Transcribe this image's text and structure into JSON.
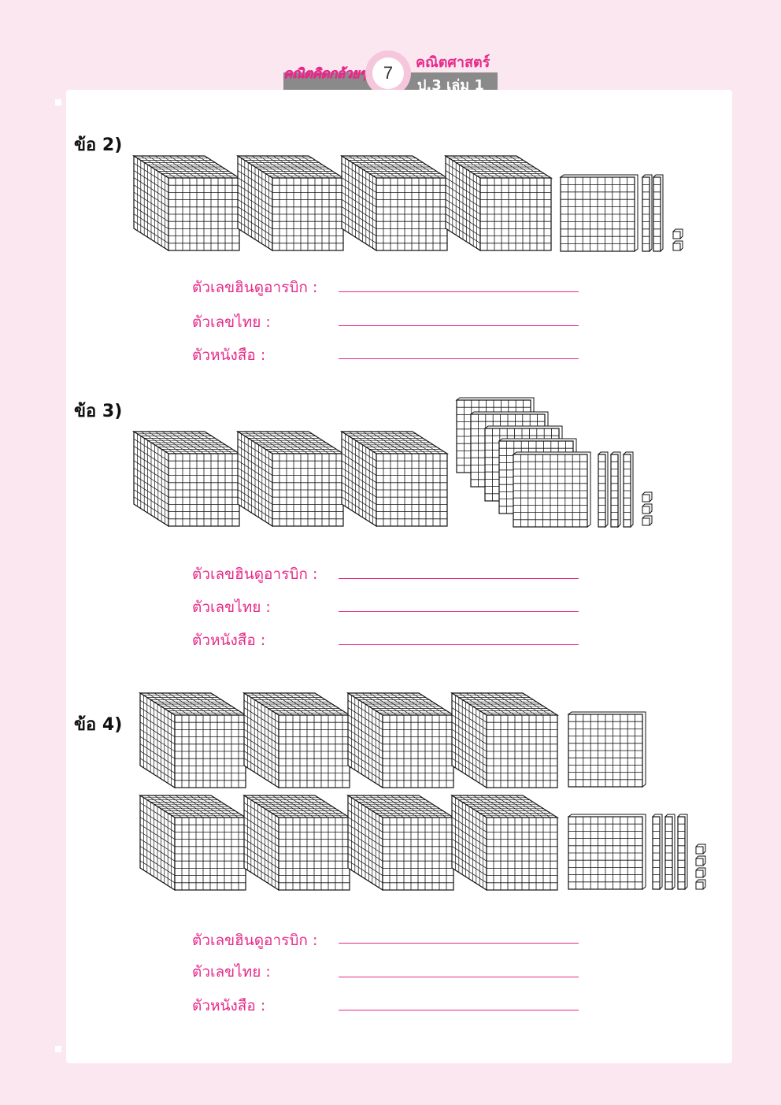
{
  "header": {
    "left_text": "คณิตคิดกล้วยๆ",
    "page_number": "7",
    "subject": "คณิตศาสตร์",
    "grade": "ป.3 เล่ม 1"
  },
  "questions": [
    {
      "label": "ข้อ 2)",
      "blocks": {
        "thousands": 4,
        "hundreds": 1,
        "tens": 2,
        "ones": 2
      },
      "answers": [
        {
          "label": "ตัวเลขฮินดูอารบิก :",
          "value": ""
        },
        {
          "label": "ตัวเลขไทย :",
          "value": ""
        },
        {
          "label": "ตัวหนังสือ :",
          "value": ""
        }
      ]
    },
    {
      "label": "ข้อ 3)",
      "blocks": {
        "thousands": 3,
        "hundreds": 5,
        "tens": 3,
        "ones": 3
      },
      "answers": [
        {
          "label": "ตัวเลขฮินดูอารบิก :",
          "value": ""
        },
        {
          "label": "ตัวเลขไทย :",
          "value": ""
        },
        {
          "label": "ตัวหนังสือ :",
          "value": ""
        }
      ]
    },
    {
      "label": "ข้อ 4)",
      "blocks": {
        "thousands": 8,
        "hundreds": 2,
        "tens": 3,
        "ones": 4
      },
      "answers": [
        {
          "label": "ตัวเลขฮินดูอารบิก :",
          "value": ""
        },
        {
          "label": "ตัวเลขไทย :",
          "value": ""
        },
        {
          "label": "ตัวหนังสือ :",
          "value": ""
        }
      ]
    }
  ]
}
